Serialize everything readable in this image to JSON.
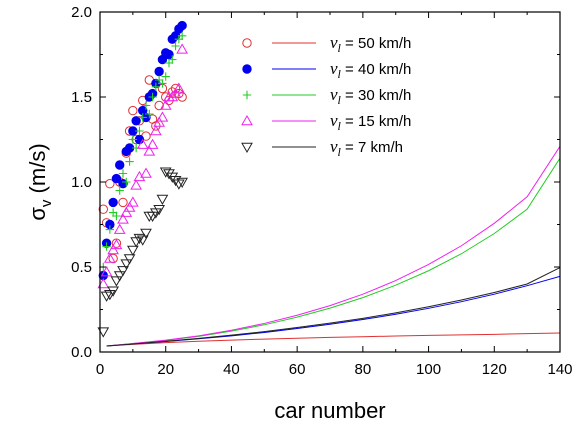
{
  "chart_data": {
    "type": "scatter",
    "xlabel": "car number",
    "ylabel": "σ",
    "ylabel_sub": "v",
    "ylabel_unit": " (m/s)",
    "xlim": [
      0,
      140
    ],
    "ylim": [
      0,
      2.0
    ],
    "x_ticks": [
      0,
      20,
      40,
      60,
      80,
      100,
      120,
      140
    ],
    "x_tick_labels": [
      "0",
      "20",
      "40",
      "60",
      "80",
      "100",
      "120",
      "140"
    ],
    "y_ticks": [
      0,
      0.5,
      1.0,
      1.5,
      2.0
    ],
    "y_tick_labels": [
      "0.0",
      "0.5",
      "1.0",
      "1.5",
      "2.0"
    ],
    "grid": false,
    "legend_placement": "top-right",
    "series": [
      {
        "label_var": "v",
        "label_sub": "l",
        "label_value": " = 50 km/h",
        "color": "#e03030",
        "marker": "circle-open",
        "points": [
          [
            1,
            0.84
          ],
          [
            2,
            0.76
          ],
          [
            3,
            0.99
          ],
          [
            4,
            0.55
          ],
          [
            5,
            0.64
          ],
          [
            6,
            1.0
          ],
          [
            7,
            0.88
          ],
          [
            8,
            1.17
          ],
          [
            9,
            1.3
          ],
          [
            10,
            1.42
          ],
          [
            11,
            1.25
          ],
          [
            12,
            1.36
          ],
          [
            13,
            1.48
          ],
          [
            14,
            1.27
          ],
          [
            15,
            1.6
          ],
          [
            16,
            1.37
          ],
          [
            17,
            1.33
          ],
          [
            18,
            1.45
          ],
          [
            19,
            1.55
          ],
          [
            20,
            1.5
          ],
          [
            21,
            1.48
          ],
          [
            22,
            1.53
          ],
          [
            23,
            1.55
          ],
          [
            24,
            1.52
          ],
          [
            25,
            1.5
          ]
        ],
        "curve": [
          [
            2,
            0.035
          ],
          [
            10,
            0.045
          ],
          [
            20,
            0.055
          ],
          [
            30,
            0.063
          ],
          [
            40,
            0.07
          ],
          [
            50,
            0.076
          ],
          [
            60,
            0.081
          ],
          [
            70,
            0.086
          ],
          [
            80,
            0.09
          ],
          [
            90,
            0.094
          ],
          [
            100,
            0.098
          ],
          [
            110,
            0.101
          ],
          [
            120,
            0.104
          ],
          [
            130,
            0.108
          ],
          [
            140,
            0.112
          ]
        ]
      },
      {
        "label_var": "v",
        "label_sub": "l",
        "label_value": " = 40 km/h",
        "color": "#0000ee",
        "marker": "circle-filled",
        "points": [
          [
            1,
            0.45
          ],
          [
            2,
            0.64
          ],
          [
            3,
            0.75
          ],
          [
            4,
            0.88
          ],
          [
            5,
            1.02
          ],
          [
            6,
            1.1
          ],
          [
            7,
            0.99
          ],
          [
            8,
            1.18
          ],
          [
            9,
            1.2
          ],
          [
            10,
            1.3
          ],
          [
            11,
            1.36
          ],
          [
            12,
            1.25
          ],
          [
            13,
            1.42
          ],
          [
            14,
            1.38
          ],
          [
            15,
            1.5
          ],
          [
            16,
            1.52
          ],
          [
            17,
            1.58
          ],
          [
            18,
            1.65
          ],
          [
            19,
            1.72
          ],
          [
            20,
            1.76
          ],
          [
            21,
            1.75
          ],
          [
            22,
            1.84
          ],
          [
            23,
            1.86
          ],
          [
            24,
            1.9
          ],
          [
            25,
            1.92
          ]
        ],
        "curve": [
          [
            2,
            0.035
          ],
          [
            10,
            0.048
          ],
          [
            20,
            0.062
          ],
          [
            30,
            0.078
          ],
          [
            40,
            0.095
          ],
          [
            50,
            0.115
          ],
          [
            60,
            0.138
          ],
          [
            70,
            0.163
          ],
          [
            80,
            0.191
          ],
          [
            90,
            0.222
          ],
          [
            100,
            0.257
          ],
          [
            110,
            0.296
          ],
          [
            120,
            0.34
          ],
          [
            130,
            0.39
          ],
          [
            140,
            0.445
          ]
        ]
      },
      {
        "label_var": "v",
        "label_sub": "l",
        "label_value": " = 30 km/h",
        "color": "#22cc22",
        "marker": "plus",
        "points": [
          [
            1,
            0.5
          ],
          [
            2,
            0.62
          ],
          [
            3,
            0.72
          ],
          [
            4,
            0.82
          ],
          [
            5,
            0.8
          ],
          [
            6,
            0.95
          ],
          [
            7,
            1.05
          ],
          [
            8,
            1.0
          ],
          [
            9,
            1.12
          ],
          [
            10,
            1.25
          ],
          [
            11,
            1.2
          ],
          [
            12,
            1.3
          ],
          [
            13,
            1.38
          ],
          [
            14,
            1.45
          ],
          [
            15,
            1.4
          ],
          [
            16,
            1.5
          ],
          [
            17,
            1.56
          ],
          [
            18,
            1.6
          ],
          [
            19,
            1.58
          ],
          [
            20,
            1.62
          ],
          [
            21,
            1.7
          ],
          [
            22,
            1.72
          ],
          [
            23,
            1.8
          ],
          [
            24,
            1.84
          ],
          [
            25,
            1.86
          ]
        ],
        "curve": [
          [
            2,
            0.035
          ],
          [
            10,
            0.05
          ],
          [
            20,
            0.068
          ],
          [
            30,
            0.092
          ],
          [
            40,
            0.123
          ],
          [
            50,
            0.16
          ],
          [
            60,
            0.205
          ],
          [
            70,
            0.258
          ],
          [
            80,
            0.32
          ],
          [
            90,
            0.393
          ],
          [
            100,
            0.478
          ],
          [
            110,
            0.578
          ],
          [
            120,
            0.697
          ],
          [
            130,
            0.84
          ],
          [
            140,
            1.14
          ]
        ]
      },
      {
        "label_var": "v",
        "label_sub": "l",
        "label_value": " = 15 km/h",
        "color": "#ee22ee",
        "marker": "triangle-up-open",
        "points": [
          [
            1,
            0.4
          ],
          [
            2,
            0.47
          ],
          [
            3,
            0.55
          ],
          [
            4,
            0.6
          ],
          [
            5,
            0.63
          ],
          [
            6,
            0.72
          ],
          [
            7,
            0.78
          ],
          [
            8,
            0.82
          ],
          [
            9,
            0.85
          ],
          [
            10,
            0.88
          ],
          [
            11,
            0.98
          ],
          [
            12,
            1.03
          ],
          [
            13,
            1.22
          ],
          [
            14,
            1.05
          ],
          [
            15,
            1.18
          ],
          [
            16,
            1.22
          ],
          [
            17,
            1.3
          ],
          [
            18,
            1.35
          ],
          [
            19,
            1.38
          ],
          [
            20,
            1.45
          ],
          [
            21,
            1.5
          ],
          [
            22,
            1.5
          ],
          [
            23,
            1.52
          ],
          [
            24,
            1.55
          ],
          [
            25,
            1.78
          ]
        ],
        "curve": [
          [
            2,
            0.035
          ],
          [
            10,
            0.05
          ],
          [
            20,
            0.07
          ],
          [
            30,
            0.095
          ],
          [
            40,
            0.128
          ],
          [
            50,
            0.168
          ],
          [
            60,
            0.216
          ],
          [
            70,
            0.273
          ],
          [
            80,
            0.34
          ],
          [
            90,
            0.42
          ],
          [
            100,
            0.515
          ],
          [
            110,
            0.625
          ],
          [
            120,
            0.757
          ],
          [
            130,
            0.913
          ],
          [
            140,
            1.21
          ]
        ]
      },
      {
        "label_var": "v",
        "label_sub": "l",
        "label_value": " = 7 km/h",
        "color": "#222222",
        "marker": "triangle-down-open",
        "points": [
          [
            1,
            0.12
          ],
          [
            2,
            0.33
          ],
          [
            3,
            0.34
          ],
          [
            4,
            0.36
          ],
          [
            5,
            0.42
          ],
          [
            6,
            0.45
          ],
          [
            7,
            0.48
          ],
          [
            8,
            0.52
          ],
          [
            9,
            0.55
          ],
          [
            10,
            0.6
          ],
          [
            11,
            0.65
          ],
          [
            12,
            0.67
          ],
          [
            13,
            0.66
          ],
          [
            14,
            0.7
          ],
          [
            15,
            0.8
          ],
          [
            16,
            0.8
          ],
          [
            17,
            0.82
          ],
          [
            18,
            0.84
          ],
          [
            19,
            0.9
          ],
          [
            20,
            1.06
          ],
          [
            21,
            1.05
          ],
          [
            22,
            1.03
          ],
          [
            23,
            1.01
          ],
          [
            24,
            0.99
          ],
          [
            25,
            1.0
          ]
        ],
        "curve": [
          [
            2,
            0.035
          ],
          [
            10,
            0.047
          ],
          [
            20,
            0.063
          ],
          [
            30,
            0.08
          ],
          [
            40,
            0.099
          ],
          [
            50,
            0.12
          ],
          [
            60,
            0.144
          ],
          [
            70,
            0.17
          ],
          [
            80,
            0.198
          ],
          [
            90,
            0.23
          ],
          [
            100,
            0.266
          ],
          [
            110,
            0.306
          ],
          [
            120,
            0.35
          ],
          [
            130,
            0.4
          ],
          [
            140,
            0.497
          ]
        ]
      }
    ]
  }
}
